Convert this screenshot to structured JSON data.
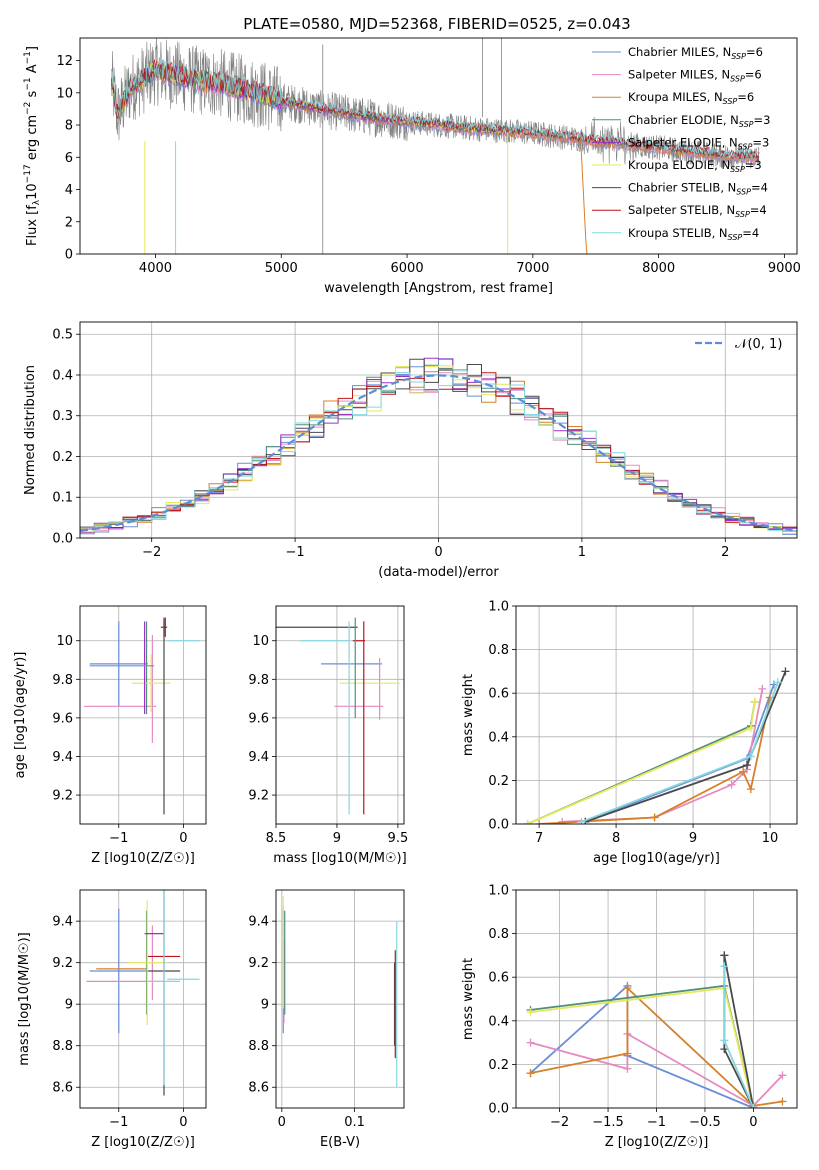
{
  "figure": {
    "title": "PLATE=0580, MJD=52368, FIBERID=0525, z=0.043"
  },
  "palette": {
    "Chabrier MILES": "#6a8fd6",
    "Salpeter MILES": "#e58ac0",
    "Kroupa MILES": "#d6802a",
    "Chabrier ELODIE": "#4f8f7c",
    "Salpeter ELODIE": "#9b2fc9",
    "Kroupa ELODIE": "#e5e85a",
    "Chabrier STELIB": "#4a4a4a",
    "Salpeter STELIB": "#c0141a",
    "Kroupa STELIB": "#86d6e0",
    "data": "#808080",
    "gaussian": "#5b8ed6"
  },
  "chart_data": [
    {
      "id": "spectrum",
      "type": "line",
      "xlabel": "wavelength [Angstrom, rest frame]",
      "ylabel": "Flux [f_λ 10^-17 erg cm^-2 s^-1 A^-1]",
      "xlim": [
        3400,
        9100
      ],
      "ylim": [
        0,
        13.4
      ],
      "xticks": [
        4000,
        5000,
        6000,
        7000,
        8000,
        9000
      ],
      "yticks": [
        0,
        2,
        4,
        6,
        8,
        10,
        12
      ],
      "legend": {
        "position": "top-right",
        "entries": [
          {
            "base": "Chabrier MILES, N",
            "sub": "SSP",
            "tail": "=6"
          },
          {
            "base": "Salpeter MILES, N",
            "sub": "SSP",
            "tail": "=6"
          },
          {
            "base": "Kroupa MILES, N",
            "sub": "SSP",
            "tail": "=6"
          },
          {
            "base": "Chabrier ELODIE, N",
            "sub": "SSP",
            "tail": "=3"
          },
          {
            "base": "Salpeter ELODIE, N",
            "sub": "SSP",
            "tail": "=3"
          },
          {
            "base": "Kroupa ELODIE, N",
            "sub": "SSP",
            "tail": "=3"
          },
          {
            "base": "Chabrier STELIB, N",
            "sub": "SSP",
            "tail": "=4"
          },
          {
            "base": "Salpeter STELIB, N",
            "sub": "SSP",
            "tail": "=4"
          },
          {
            "base": "Kroupa STELIB, N",
            "sub": "SSP",
            "tail": "=4"
          }
        ]
      },
      "continuum": {
        "x": [
          3650,
          3700,
          3800,
          3900,
          4000,
          4100,
          4300,
          4500,
          4800,
          5000,
          5300,
          5600,
          6000,
          6500,
          7000,
          7500,
          8000,
          8500,
          8800
        ],
        "y": [
          10.8,
          8.6,
          10.3,
          10.8,
          11.4,
          11.2,
          10.8,
          10.6,
          10.0,
          9.5,
          9.0,
          8.6,
          8.2,
          7.8,
          7.5,
          7.0,
          6.6,
          6.1,
          6.0
        ]
      }
    },
    {
      "id": "residuals",
      "type": "histogram",
      "xlabel": "(data-model)/error",
      "ylabel": "Normed distribution",
      "xlim": [
        -2.5,
        2.5
      ],
      "ylim": [
        0,
        0.53
      ],
      "xticks": [
        -2,
        -1,
        0,
        1,
        2
      ],
      "yticks": [
        0.0,
        0.1,
        0.2,
        0.3,
        0.4,
        0.5
      ],
      "grid": true,
      "legend_label": "𝒩(0, 1)",
      "bin_width": 0.1
    },
    {
      "id": "age_vs_Z",
      "type": "errorbar",
      "xlabel": "Z [log10(Z/Z☉)]",
      "ylabel": "age [log10(age/yr)]",
      "xlim": [
        -1.6,
        0.35
      ],
      "ylim": [
        9.05,
        10.18
      ],
      "xticks": [
        -1,
        0
      ],
      "yticks": [
        9.2,
        9.4,
        9.6,
        9.8,
        10.0
      ],
      "grid": true,
      "points": [
        {
          "model": "Chabrier MILES",
          "x": -1.0,
          "y": 9.88,
          "xerr": 0.45,
          "yerr": 0.22
        },
        {
          "model": "Salpeter MILES",
          "x": -0.98,
          "y": 9.66,
          "xerr": 0.56,
          "yerr": 0.0
        },
        {
          "model": "Salpeter MILES",
          "x": -0.48,
          "y": 9.75,
          "xerr": 0.0,
          "yerr": 0.28
        },
        {
          "model": "Chabrier ELODIE",
          "x": -0.57,
          "y": 9.86,
          "xerr": 0.0,
          "yerr": 0.24
        },
        {
          "model": "Kroupa ELODIE",
          "x": -0.5,
          "y": 9.78,
          "xerr": 0.3,
          "yerr": 0.15
        },
        {
          "model": "Salpeter ELODIE",
          "x": -0.6,
          "y": 9.86,
          "xerr": 0.0,
          "yerr": 0.24
        },
        {
          "model": "Chabrier STELIB",
          "x": -0.3,
          "y": 10.07,
          "xerr": 0.05,
          "yerr": 0.05
        },
        {
          "model": "Chabrier STELIB",
          "x": -0.3,
          "y": 9.6,
          "xerr": 0.0,
          "yerr": 0.5
        },
        {
          "model": "Salpeter STELIB",
          "x": -0.28,
          "y": 10.07,
          "xerr": 0.0,
          "yerr": 0.05
        },
        {
          "model": "Kroupa STELIB",
          "x": 0.0,
          "y": 10.0,
          "xerr": 0.25,
          "yerr": 0.0
        },
        {
          "model": "Chabrier MILES",
          "x": -0.95,
          "y": 9.87,
          "xerr": 0.5,
          "yerr": 0.0
        }
      ]
    },
    {
      "id": "age_vs_mass",
      "type": "errorbar",
      "xlabel": "mass [log10(M/M☉)]",
      "ylabel": "",
      "xlim": [
        8.5,
        9.55
      ],
      "ylim": [
        9.05,
        10.18
      ],
      "xticks": [
        8.5,
        9.0,
        9.5
      ],
      "yticks": [
        9.2,
        9.4,
        9.6,
        9.8,
        10.0
      ],
      "grid": true,
      "points": [
        {
          "model": "Chabrier MILES",
          "x": 9.12,
          "y": 9.88,
          "xerr": 0.25,
          "yerr": 0.0
        },
        {
          "model": "Salpeter MILES",
          "x": 9.18,
          "y": 9.66,
          "xerr": 0.2,
          "yerr": 0.0
        },
        {
          "model": "Salpeter MILES",
          "x": 9.35,
          "y": 9.75,
          "xerr": 0.0,
          "yerr": 0.16
        },
        {
          "model": "Kroupa ELODIE",
          "x": 9.27,
          "y": 9.78,
          "xerr": 0.25,
          "yerr": 0.0
        },
        {
          "model": "Chabrier STELIB",
          "x": 8.55,
          "y": 10.07,
          "xerr": 0.62,
          "yerr": 0.0
        },
        {
          "model": "Salpeter STELIB",
          "x": 9.22,
          "y": 9.6,
          "xerr": 0.0,
          "yerr": 0.5
        },
        {
          "model": "Salpeter STELIB",
          "x": 9.18,
          "y": 10.0,
          "xerr": 0.05,
          "yerr": 0.0
        },
        {
          "model": "Kroupa STELIB",
          "x": 9.1,
          "y": 9.6,
          "xerr": 0.0,
          "yerr": 0.5
        },
        {
          "model": "Kroupa STELIB",
          "x": 8.9,
          "y": 10.0,
          "xerr": 0.2,
          "yerr": 0.0
        },
        {
          "model": "Chabrier ELODIE",
          "x": 9.15,
          "y": 9.86,
          "xerr": 0.0,
          "yerr": 0.26
        }
      ]
    },
    {
      "id": "massweight_vs_age",
      "type": "line",
      "xlabel": "age [log10(age/yr)]",
      "ylabel": "mass weight",
      "xlim": [
        6.7,
        10.35
      ],
      "ylim": [
        0,
        1.0
      ],
      "xticks": [
        7,
        8,
        9,
        10
      ],
      "yticks": [
        0.0,
        0.2,
        0.4,
        0.6,
        0.8,
        1.0
      ],
      "grid": true,
      "series": [
        {
          "model": "Chabrier MILES",
          "x": [
            7.6,
            9.7,
            10.05
          ],
          "y": [
            0.01,
            0.3,
            0.64
          ]
        },
        {
          "model": "Salpeter MILES",
          "x": [
            7.3,
            8.5,
            9.5,
            9.7,
            9.9
          ],
          "y": [
            0.01,
            0.03,
            0.18,
            0.25,
            0.62
          ]
        },
        {
          "model": "Kroupa MILES",
          "x": [
            7.0,
            8.5,
            9.65,
            9.75,
            10.0
          ],
          "y": [
            0.0,
            0.03,
            0.24,
            0.16,
            0.58
          ]
        },
        {
          "model": "Chabrier ELODIE",
          "x": [
            6.85,
            9.75,
            9.8
          ],
          "y": [
            0.0,
            0.45,
            0.56
          ]
        },
        {
          "model": "Kroupa ELODIE",
          "x": [
            6.85,
            9.75,
            9.8
          ],
          "y": [
            0.0,
            0.44,
            0.56
          ]
        },
        {
          "model": "Chabrier STELIB",
          "x": [
            7.6,
            9.7,
            10.2
          ],
          "y": [
            0.01,
            0.27,
            0.7
          ]
        },
        {
          "model": "Kroupa STELIB",
          "x": [
            7.55,
            9.75,
            10.1
          ],
          "y": [
            0.01,
            0.31,
            0.65
          ]
        }
      ]
    },
    {
      "id": "mass_vs_Z",
      "type": "errorbar",
      "xlabel": "Z [log10(Z/Z☉)]",
      "ylabel": "mass [log10(M/M☉)]",
      "xlim": [
        -1.6,
        0.35
      ],
      "ylim": [
        8.5,
        9.55
      ],
      "xticks": [
        -1,
        0
      ],
      "yticks": [
        8.6,
        8.8,
        9.0,
        9.2,
        9.4
      ],
      "grid": true,
      "points": [
        {
          "model": "Chabrier MILES",
          "x": -1.0,
          "y": 9.16,
          "xerr": 0.45,
          "yerr": 0.3
        },
        {
          "model": "Salpeter MILES",
          "x": -0.9,
          "y": 9.11,
          "xerr": 0.6,
          "yerr": 0.0
        },
        {
          "model": "Salpeter MILES",
          "x": -0.48,
          "y": 9.2,
          "xerr": 0.0,
          "yerr": 0.18
        },
        {
          "model": "Kroupa MILES",
          "x": -0.95,
          "y": 9.17,
          "xerr": 0.4,
          "yerr": 0.0
        },
        {
          "model": "Chabrier ELODIE",
          "x": -0.57,
          "y": 9.2,
          "xerr": 0.0,
          "yerr": 0.25
        },
        {
          "model": "Kroupa ELODIE",
          "x": -0.56,
          "y": 9.2,
          "xerr": 0.3,
          "yerr": 0.3
        },
        {
          "model": "Salpeter ELODIE",
          "x": -0.45,
          "y": 9.34,
          "xerr": 0.15,
          "yerr": 0.0
        },
        {
          "model": "Chabrier STELIB",
          "x": -0.3,
          "y": 9.16,
          "xerr": 0.25,
          "yerr": 0.6
        },
        {
          "model": "Salpeter STELIB",
          "x": -0.3,
          "y": 9.23,
          "xerr": 0.25,
          "yerr": 0.0
        },
        {
          "model": "Kroupa STELIB",
          "x": -0.3,
          "y": 9.11,
          "xerr": 0.25,
          "yerr": 0.5
        },
        {
          "model": "Kroupa STELIB",
          "x": 0.0,
          "y": 9.12,
          "xerr": 0.25,
          "yerr": 0.0
        }
      ]
    },
    {
      "id": "mass_vs_EBV",
      "type": "errorbar",
      "xlabel": "E(B-V)",
      "ylabel": "",
      "xlim": [
        -0.008,
        0.168
      ],
      "ylim": [
        8.5,
        9.55
      ],
      "xticks": [
        0.0,
        0.1
      ],
      "yticks": [
        8.6,
        8.8,
        9.0,
        9.2,
        9.4
      ],
      "grid": true,
      "points": [
        {
          "model": "Chabrier MILES",
          "x": 0.002,
          "y": 9.16,
          "xerr": 0.0,
          "yerr": 0.3
        },
        {
          "model": "Salpeter MILES",
          "x": 0.003,
          "y": 9.11,
          "xerr": 0.0,
          "yerr": 0.2
        },
        {
          "model": "Kroupa ELODIE",
          "x": 0.002,
          "y": 9.25,
          "xerr": 0.0,
          "yerr": 0.27
        },
        {
          "model": "Chabrier ELODIE",
          "x": 0.004,
          "y": 9.2,
          "xerr": 0.0,
          "yerr": 0.25
        },
        {
          "model": "Chabrier STELIB",
          "x": 0.155,
          "y": 9.0,
          "xerr": 0.0,
          "yerr": 0.2
        },
        {
          "model": "Salpeter STELIB",
          "x": 0.156,
          "y": 9.0,
          "xerr": 0.0,
          "yerr": 0.26
        },
        {
          "model": "Kroupa STELIB",
          "x": 0.158,
          "y": 9.0,
          "xerr": 0.0,
          "yerr": 0.4
        }
      ]
    },
    {
      "id": "massweight_vs_Z",
      "type": "line",
      "xlabel": "Z [log10(Z/Z☉)]",
      "ylabel": "mass weight",
      "xlim": [
        -2.45,
        0.45
      ],
      "ylim": [
        0,
        1.0
      ],
      "xticks": [
        -2.0,
        -1.5,
        -1.0,
        -0.5,
        0.0
      ],
      "yticks": [
        0.0,
        0.2,
        0.4,
        0.6,
        0.8,
        1.0
      ],
      "grid": true,
      "series": [
        {
          "model": "Chabrier MILES",
          "x": [
            -2.3,
            -1.3,
            -1.3,
            0.0
          ],
          "y": [
            0.16,
            0.56,
            0.24,
            0.0
          ]
        },
        {
          "model": "Salpeter MILES",
          "x": [
            -2.3,
            -1.3,
            -1.3,
            0.0,
            0.3
          ],
          "y": [
            0.3,
            0.18,
            0.34,
            0.01,
            0.15
          ]
        },
        {
          "model": "Kroupa MILES",
          "x": [
            -2.3,
            -1.3,
            -1.3,
            0.0,
            0.3
          ],
          "y": [
            0.16,
            0.25,
            0.55,
            0.01,
            0.03
          ]
        },
        {
          "model": "Chabrier ELODIE",
          "x": [
            -2.3,
            -0.3,
            0.0
          ],
          "y": [
            0.45,
            0.56,
            0.0
          ]
        },
        {
          "model": "Kroupa ELODIE",
          "x": [
            -2.3,
            -0.3,
            0.0
          ],
          "y": [
            0.44,
            0.55,
            0.0
          ]
        },
        {
          "model": "Chabrier STELIB",
          "x": [
            -0.3,
            -0.3,
            0.0,
            -0.3
          ],
          "y": [
            0.7,
            0.27,
            0.0,
            0.7
          ]
        },
        {
          "model": "Kroupa STELIB",
          "x": [
            -0.3,
            -0.3,
            0.0
          ],
          "y": [
            0.65,
            0.31,
            0.0
          ]
        }
      ]
    }
  ]
}
